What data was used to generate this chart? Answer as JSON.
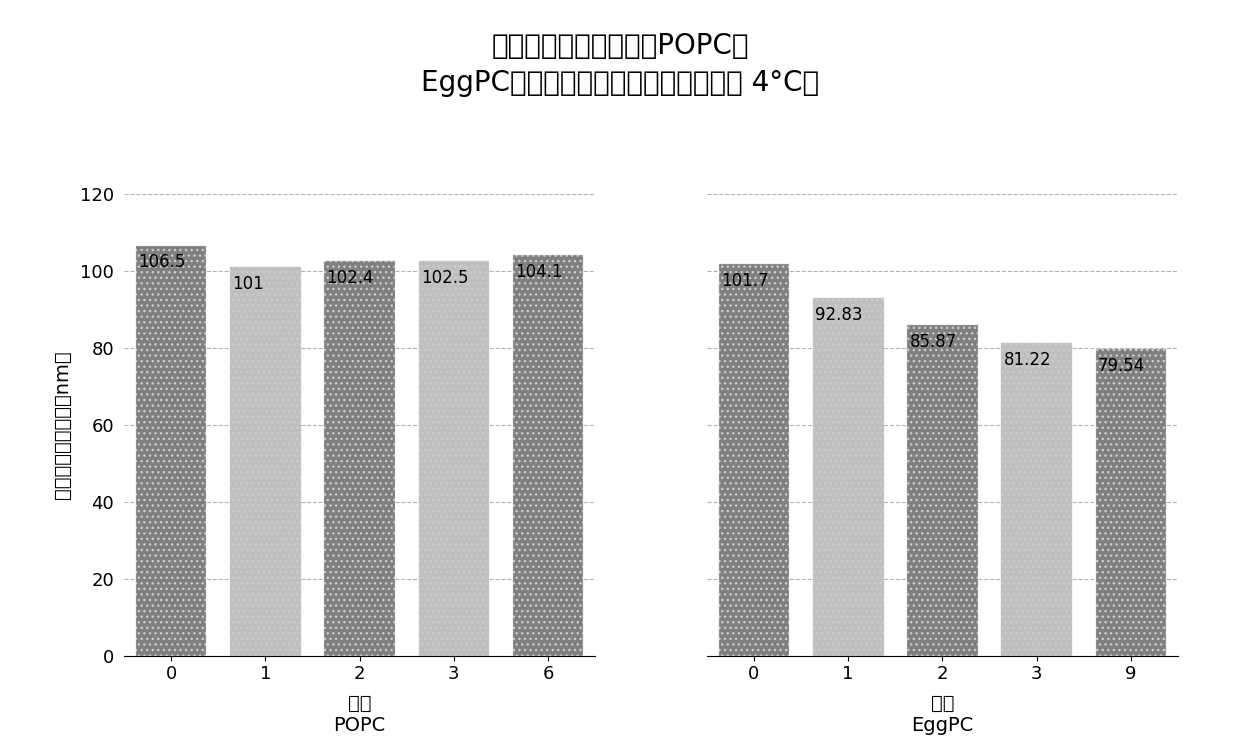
{
  "title_line1": "装载有拉坦前列腺素的POPC与",
  "title_line2": "EggPC脂质体的平均大小变化（储存在 4°C）",
  "ylabel": "脂质体的平均大小（nm）",
  "popc_months": [
    0,
    1,
    2,
    3,
    6
  ],
  "popc_values": [
    106.5,
    101,
    102.4,
    102.5,
    104.1
  ],
  "popc_labels": [
    "106.5",
    "101",
    "102.4",
    "102.5",
    "104.1"
  ],
  "eggpc_months": [
    0,
    1,
    2,
    3,
    9
  ],
  "eggpc_values": [
    101.7,
    92.83,
    85.87,
    81.22,
    79.54
  ],
  "eggpc_labels": [
    "101.7",
    "92.83",
    "85.87",
    "81.22",
    "79.54"
  ],
  "ylim": [
    0,
    120
  ],
  "yticks": [
    0,
    20,
    40,
    60,
    80,
    100,
    120
  ],
  "bar_color_dark": "#7f7f7f",
  "bar_color_light": "#bfbfbf",
  "background_color": "#ffffff",
  "title_fontsize": 20,
  "label_fontsize": 14,
  "tick_fontsize": 13,
  "value_fontsize": 12
}
